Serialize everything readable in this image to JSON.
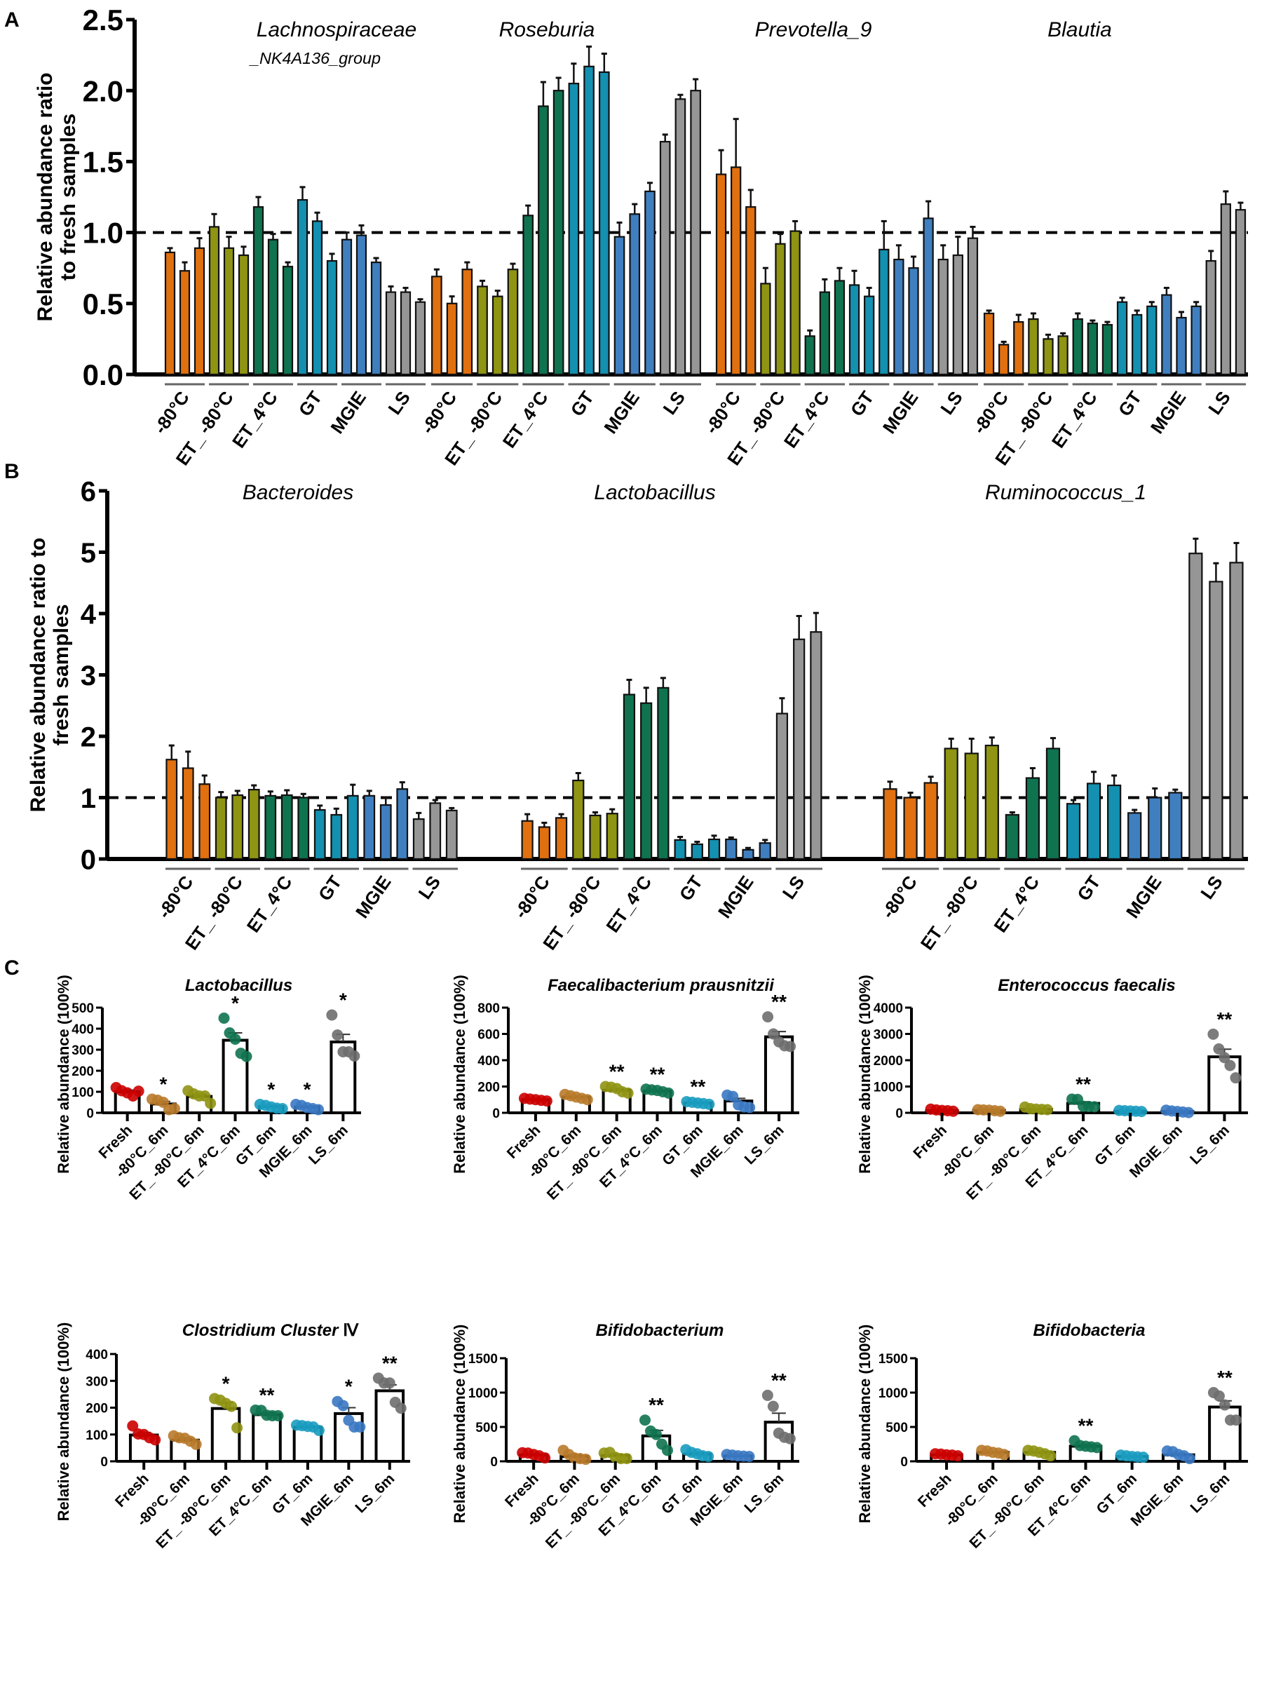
{
  "figure": {
    "panel_letters": [
      "A",
      "B",
      "C"
    ]
  },
  "colors": {
    "-80°C": "#e07010",
    "ET_-80°C": "#8f9412",
    "ET_4°C": "#0f7350",
    "GT": "#1490b0",
    "MGIE": "#3f7fbf",
    "LS": "#969696",
    "Fresh": "#cc0000",
    "-80°C_6m": "#b87a2a",
    "ET_-80°C_6m": "#8f9412",
    "ET_4°C_6m": "#0f7350",
    "GT_6m": "#1a9cc0",
    "MGIE_6m": "#3a78c2",
    "LS_6m": "#6e6e6e"
  },
  "chart_data": [
    {
      "id": "A",
      "type": "bar",
      "ylabel": "Relative abundance ratio to fresh samples",
      "ylabel_lines": [
        "Relative abundance ratio",
        "to fresh samples"
      ],
      "ylim": [
        0,
        2.5
      ],
      "yticks": [
        "0.0",
        "0.5",
        "1.0",
        "1.5",
        "2.0",
        "2.5"
      ],
      "ytick_values": [
        0,
        0.5,
        1.0,
        1.5,
        2.0,
        2.5
      ],
      "reference_line": 1.0,
      "group_categories": [
        "-80°C",
        "ET_-80°C",
        "ET_4°C",
        "GT",
        "MGIE",
        "LS"
      ],
      "replicates_per_group": 3,
      "taxa": [
        {
          "title_lines": [
            "Lachnospiraceae",
            "_NK4A136_group"
          ],
          "values": [
            0.86,
            0.73,
            0.89,
            1.04,
            0.89,
            0.84,
            1.18,
            0.95,
            0.76,
            1.23,
            1.08,
            0.8,
            0.95,
            0.98,
            0.79,
            0.58,
            0.58,
            0.51
          ],
          "errors": [
            0.03,
            0.06,
            0.07,
            0.09,
            0.08,
            0.06,
            0.07,
            0.04,
            0.03,
            0.09,
            0.06,
            0.05,
            0.05,
            0.07,
            0.03,
            0.04,
            0.03,
            0.02
          ]
        },
        {
          "title_lines": [
            "Roseburia"
          ],
          "values": [
            0.69,
            0.5,
            0.74,
            0.62,
            0.55,
            0.74,
            1.12,
            1.89,
            2.0,
            2.05,
            2.17,
            2.13,
            0.97,
            1.13,
            1.29,
            1.64,
            1.94,
            2.0
          ],
          "errors": [
            0.05,
            0.05,
            0.05,
            0.04,
            0.04,
            0.04,
            0.07,
            0.17,
            0.09,
            0.14,
            0.14,
            0.13,
            0.1,
            0.07,
            0.06,
            0.05,
            0.03,
            0.08
          ]
        },
        {
          "title_lines": [
            "Prevotella_9"
          ],
          "values": [
            1.41,
            1.46,
            1.18,
            0.64,
            0.92,
            1.01,
            0.27,
            0.58,
            0.66,
            0.63,
            0.55,
            0.88,
            0.81,
            0.75,
            1.1,
            0.81,
            0.84,
            0.96
          ],
          "errors": [
            0.17,
            0.34,
            0.12,
            0.11,
            0.07,
            0.07,
            0.04,
            0.09,
            0.09,
            0.1,
            0.06,
            0.2,
            0.1,
            0.08,
            0.12,
            0.1,
            0.13,
            0.08
          ]
        },
        {
          "title_lines": [
            "Blautia"
          ],
          "values": [
            0.43,
            0.21,
            0.37,
            0.39,
            0.25,
            0.27,
            0.39,
            0.36,
            0.35,
            0.51,
            0.42,
            0.48,
            0.56,
            0.4,
            0.48,
            0.8,
            1.2,
            1.16
          ],
          "errors": [
            0.02,
            0.02,
            0.05,
            0.04,
            0.03,
            0.02,
            0.04,
            0.02,
            0.02,
            0.03,
            0.03,
            0.03,
            0.05,
            0.04,
            0.03,
            0.07,
            0.09,
            0.05
          ]
        }
      ]
    },
    {
      "id": "B",
      "type": "bar",
      "ylabel": "Relative abundance ratio to fresh samples",
      "ylabel_lines": [
        "Relative abundance ratio to",
        "fresh samples"
      ],
      "ylim": [
        0,
        6
      ],
      "yticks": [
        "0",
        "1",
        "2",
        "3",
        "4",
        "5",
        "6"
      ],
      "ytick_values": [
        0,
        1,
        2,
        3,
        4,
        5,
        6
      ],
      "reference_line": 1.0,
      "group_categories": [
        "-80°C",
        "ET_-80°C",
        "ET_4°C",
        "GT",
        "MGIE",
        "LS"
      ],
      "replicates_per_group": 3,
      "taxa": [
        {
          "title_lines": [
            "Bacteroides"
          ],
          "values": [
            1.62,
            1.48,
            1.22,
            1.0,
            1.04,
            1.13,
            1.03,
            1.04,
            1.0,
            0.8,
            0.72,
            1.03,
            1.03,
            0.88,
            1.14,
            0.65,
            0.91,
            0.79
          ],
          "errors": [
            0.23,
            0.27,
            0.14,
            0.09,
            0.07,
            0.07,
            0.07,
            0.08,
            0.06,
            0.07,
            0.1,
            0.18,
            0.08,
            0.12,
            0.11,
            0.1,
            0.05,
            0.04
          ]
        },
        {
          "title_lines": [
            "Lactobacillus"
          ],
          "values": [
            0.62,
            0.52,
            0.67,
            1.28,
            0.71,
            0.74,
            2.68,
            2.54,
            2.79,
            0.31,
            0.24,
            0.32,
            0.32,
            0.15,
            0.26,
            2.37,
            3.58,
            3.7
          ],
          "errors": [
            0.11,
            0.07,
            0.06,
            0.12,
            0.05,
            0.07,
            0.24,
            0.25,
            0.16,
            0.05,
            0.04,
            0.06,
            0.03,
            0.03,
            0.05,
            0.25,
            0.38,
            0.31
          ]
        },
        {
          "title_lines": [
            "Ruminococcus_1"
          ],
          "values": [
            1.14,
            1.0,
            1.24,
            1.8,
            1.72,
            1.85,
            0.72,
            1.32,
            1.8,
            0.9,
            1.23,
            1.2,
            0.75,
            1.0,
            1.08,
            4.98,
            4.52,
            4.83
          ],
          "errors": [
            0.12,
            0.08,
            0.1,
            0.16,
            0.24,
            0.13,
            0.04,
            0.16,
            0.17,
            0.06,
            0.19,
            0.16,
            0.05,
            0.15,
            0.05,
            0.24,
            0.3,
            0.32
          ]
        }
      ]
    },
    {
      "id": "C",
      "type": "bar",
      "ylabel": "Relative abundance (100%)",
      "categories": [
        "Fresh",
        "-80°C_6m",
        "ET_-80°C_6m",
        "ET_4°C_6m",
        "GT_6m",
        "MGIE_6m",
        "LS_6m"
      ],
      "panels": [
        {
          "title": "Lactobacillus",
          "title_suffix": "",
          "ylim": [
            0,
            500
          ],
          "yticks": [
            0,
            100,
            200,
            300,
            400,
            500
          ],
          "means": [
            100,
            42,
            78,
            345,
            30,
            28,
            337
          ],
          "sem": [
            8,
            12,
            10,
            35,
            5,
            4,
            36
          ],
          "points": [
            [
              120,
              105,
              95,
              80,
              103
            ],
            [
              65,
              60,
              50,
              15,
              20
            ],
            [
              105,
              90,
              80,
              80,
              45
            ],
            [
              450,
              380,
              350,
              283,
              268
            ],
            [
              40,
              35,
              28,
              22,
              20
            ],
            [
              40,
              35,
              25,
              20,
              15
            ],
            [
              465,
              370,
              290,
              290,
              270
            ]
          ],
          "sig": [
            "",
            "*",
            "",
            "*",
            "*",
            "*",
            "*"
          ]
        },
        {
          "title": "Faecalibacterium prausnitzii",
          "title_suffix": "",
          "ylim": [
            0,
            800
          ],
          "yticks": [
            0,
            200,
            400,
            600,
            800
          ],
          "means": [
            100,
            120,
            172,
            165,
            75,
            90,
            578
          ],
          "sem": [
            5,
            8,
            12,
            6,
            4,
            20,
            40
          ],
          "points": [
            [
              110,
              105,
              100,
              95,
              90
            ],
            [
              140,
              130,
              120,
              110,
              100
            ],
            [
              200,
              195,
              185,
              160,
              150
            ],
            [
              180,
              175,
              170,
              160,
              150
            ],
            [
              85,
              80,
              75,
              70,
              65
            ],
            [
              135,
              125,
              60,
              45,
              40
            ],
            [
              730,
              600,
              540,
              510,
              505
            ]
          ],
          "sig": [
            "",
            "",
            "**",
            "**",
            "**",
            "",
            "**"
          ]
        },
        {
          "title": "Enterococcus faecalis",
          "title_suffix": "",
          "ylim": [
            0,
            4000
          ],
          "yticks": [
            0,
            1000,
            2000,
            3000,
            4000
          ],
          "means": [
            80,
            90,
            130,
            360,
            60,
            50,
            2130
          ],
          "sem": [
            15,
            10,
            25,
            60,
            8,
            10,
            290
          ],
          "points": [
            [
              140,
              110,
              90,
              80,
              60
            ],
            [
              120,
              110,
              100,
              80,
              60
            ],
            [
              220,
              160,
              140,
              130,
              120
            ],
            [
              520,
              510,
              250,
              240,
              230
            ],
            [
              90,
              80,
              70,
              60,
              50
            ],
            [
              100,
              70,
              50,
              30,
              10
            ],
            [
              2990,
              2430,
              2100,
              1800,
              1330
            ]
          ],
          "sig": [
            "",
            "",
            "",
            "**",
            "",
            "",
            "**"
          ]
        },
        {
          "title": "Clostridium Cluster ",
          "title_suffix": "Ⅳ",
          "ylim": [
            0,
            400
          ],
          "yticks": [
            0,
            100,
            200,
            300,
            400
          ],
          "means": [
            98,
            79,
            197,
            174,
            127,
            178,
            263
          ],
          "sem": [
            10,
            8,
            22,
            8,
            4,
            22,
            22
          ],
          "points": [
            [
              132,
              102,
              100,
              88,
              80
            ],
            [
              95,
              88,
              86,
              75,
              63
            ],
            [
              234,
              228,
              216,
              205,
              125
            ],
            [
              191,
              190,
              172,
              170,
              170
            ],
            [
              135,
              133,
              130,
              128,
              115
            ],
            [
              223,
              208,
              153,
              128,
              128
            ],
            [
              310,
              292,
              292,
              220,
              198
            ]
          ],
          "sig": [
            "",
            "",
            "*",
            "**",
            "",
            "*",
            "**"
          ]
        },
        {
          "title": "Bifidobacterium",
          "title_suffix": "",
          "ylim": [
            0,
            1500
          ],
          "yticks": [
            0,
            500,
            1000,
            1500
          ],
          "means": [
            95,
            70,
            85,
            370,
            105,
            80,
            570
          ],
          "sem": [
            10,
            30,
            20,
            80,
            25,
            8,
            130
          ],
          "points": [
            [
              125,
              120,
              100,
              80,
              50
            ],
            [
              160,
              100,
              50,
              40,
              30
            ],
            [
              120,
              130,
              60,
              40,
              40
            ],
            [
              600,
              440,
              390,
              250,
              160
            ],
            [
              170,
              130,
              110,
              80,
              70
            ],
            [
              100,
              90,
              80,
              75,
              70
            ],
            [
              960,
              800,
              410,
              350,
              330
            ]
          ],
          "sig": [
            "",
            "",
            "",
            "**",
            "",
            "",
            "**"
          ]
        },
        {
          "title": "Bifidobacteria",
          "title_suffix": "",
          "ylim": [
            0,
            1500
          ],
          "yticks": [
            0,
            500,
            1000,
            1500
          ],
          "means": [
            95,
            130,
            130,
            220,
            70,
            95,
            790
          ],
          "sem": [
            5,
            8,
            10,
            25,
            5,
            20,
            90
          ],
          "points": [
            [
              110,
              105,
              95,
              90,
              80
            ],
            [
              160,
              150,
              130,
              120,
              100
            ],
            [
              160,
              150,
              130,
              110,
              80
            ],
            [
              300,
              230,
              220,
              210,
              200
            ],
            [
              90,
              80,
              70,
              65,
              60
            ],
            [
              150,
              140,
              100,
              80,
              40
            ],
            [
              1000,
              950,
              820,
              600,
              600
            ]
          ],
          "sig": [
            "",
            "",
            "",
            "**",
            "",
            "",
            "**"
          ]
        }
      ]
    }
  ]
}
